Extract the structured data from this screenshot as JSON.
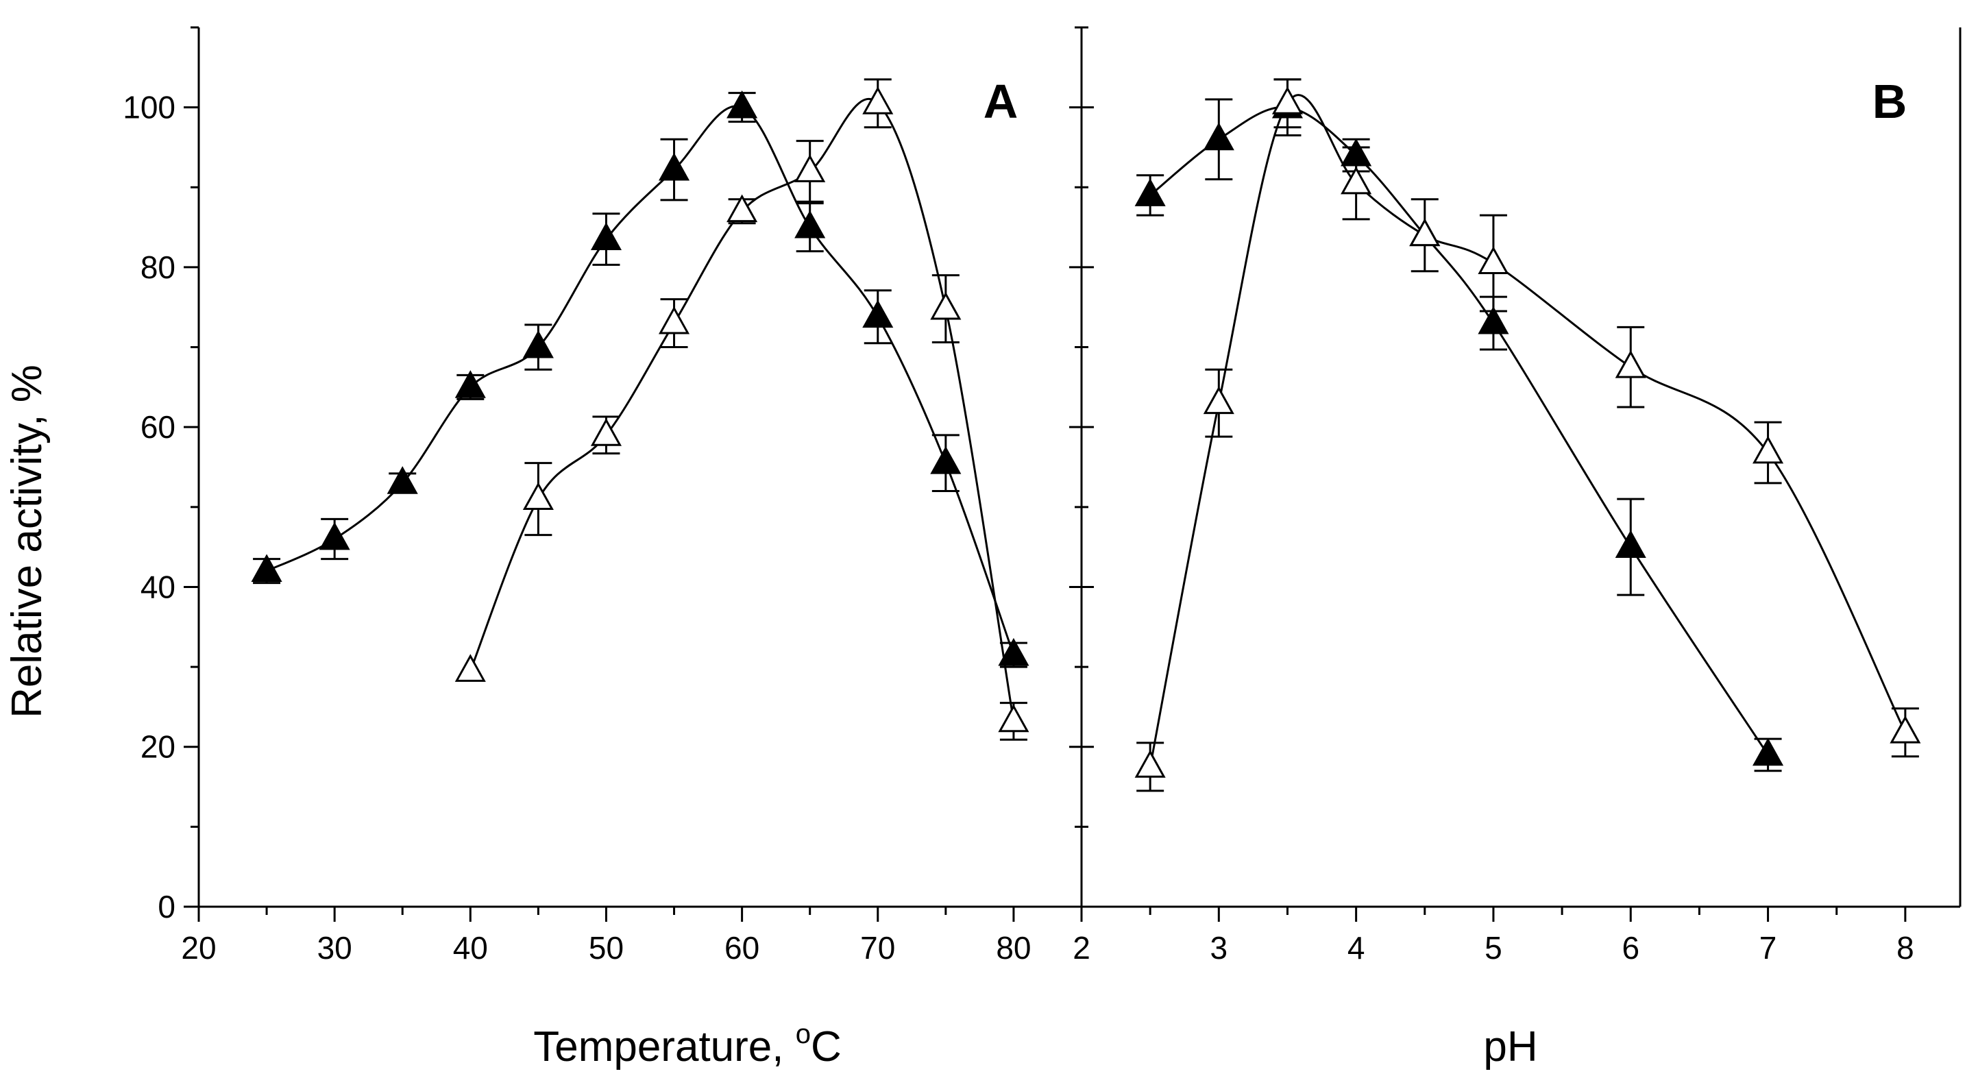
{
  "figure": {
    "ylabel": "Relative activity, %"
  },
  "chart_data": [
    {
      "type": "line",
      "panel_label": "A",
      "xlabel_main": "Temperature, ",
      "xlabel_deg": "o",
      "xlabel_unit": "C",
      "ylabel": "Relative activity, %",
      "xlim": [
        20,
        85
      ],
      "ylim": [
        0,
        110
      ],
      "x_ticks": [
        20,
        30,
        40,
        50,
        60,
        70,
        80
      ],
      "y_ticks": [
        0,
        20,
        40,
        60,
        80,
        100
      ],
      "series": [
        {
          "name": "filled triangles",
          "marker": "filled-triangle",
          "points": [
            {
              "x": 25,
              "y": 42,
              "err": 1.5
            },
            {
              "x": 30,
              "y": 46,
              "err": 2.5
            },
            {
              "x": 35,
              "y": 53,
              "err": 1.2
            },
            {
              "x": 40,
              "y": 65,
              "err": 1.5
            },
            {
              "x": 45,
              "y": 70,
              "err": 2.8
            },
            {
              "x": 50,
              "y": 83.5,
              "err": 3.2
            },
            {
              "x": 55,
              "y": 92.2,
              "err": 3.8
            },
            {
              "x": 60,
              "y": 100,
              "err": 1.8
            },
            {
              "x": 65,
              "y": 85,
              "err": 3
            },
            {
              "x": 70,
              "y": 73.8,
              "err": 3.3
            },
            {
              "x": 75,
              "y": 55.5,
              "err": 3.5
            },
            {
              "x": 80,
              "y": 31.5,
              "err": 1.5
            }
          ]
        },
        {
          "name": "open triangles",
          "marker": "open-triangle",
          "points": [
            {
              "x": 40,
              "y": 29.5,
              "err": 0
            },
            {
              "x": 45,
              "y": 51,
              "err": 4.5
            },
            {
              "x": 50,
              "y": 59,
              "err": 2.3
            },
            {
              "x": 55,
              "y": 73,
              "err": 3
            },
            {
              "x": 60,
              "y": 87,
              "err": 1.5
            },
            {
              "x": 65,
              "y": 92,
              "err": 3.8
            },
            {
              "x": 70,
              "y": 100.5,
              "err": 3
            },
            {
              "x": 75,
              "y": 74.8,
              "err": 4.2
            },
            {
              "x": 80,
              "y": 23.2,
              "err": 2.3
            }
          ]
        }
      ]
    },
    {
      "type": "line",
      "panel_label": "B",
      "xlabel": "pH",
      "xlim": [
        2,
        8.4
      ],
      "ylim": [
        0,
        110
      ],
      "x_ticks": [
        2,
        3,
        4,
        5,
        6,
        7,
        8
      ],
      "y_ticks": [
        0,
        20,
        40,
        60,
        80,
        100
      ],
      "series": [
        {
          "name": "filled triangles",
          "marker": "filled-triangle",
          "points": [
            {
              "x": 2.5,
              "y": 89,
              "err": 2.5
            },
            {
              "x": 3,
              "y": 96,
              "err": 5
            },
            {
              "x": 3.5,
              "y": 100,
              "err": 3.5
            },
            {
              "x": 4,
              "y": 94,
              "err": 2
            },
            {
              "x": 4.5,
              "y": 84,
              "err": 4.5
            },
            {
              "x": 5,
              "y": 73,
              "err": 3.3
            },
            {
              "x": 6,
              "y": 45,
              "err": 6
            },
            {
              "x": 7,
              "y": 19,
              "err": 2
            }
          ]
        },
        {
          "name": "open triangles",
          "marker": "open-triangle",
          "points": [
            {
              "x": 2.5,
              "y": 17.5,
              "err": 3
            },
            {
              "x": 3,
              "y": 63,
              "err": 4.2
            },
            {
              "x": 3.5,
              "y": 100.5,
              "err": 3
            },
            {
              "x": 4,
              "y": 90.5,
              "err": 4.5
            },
            {
              "x": 4.5,
              "y": 84,
              "err": 0
            },
            {
              "x": 5,
              "y": 80.5,
              "err": 6
            },
            {
              "x": 6,
              "y": 67.5,
              "err": 5
            },
            {
              "x": 7,
              "y": 56.8,
              "err": 3.8
            },
            {
              "x": 8,
              "y": 21.8,
              "err": 3
            }
          ]
        }
      ]
    }
  ]
}
